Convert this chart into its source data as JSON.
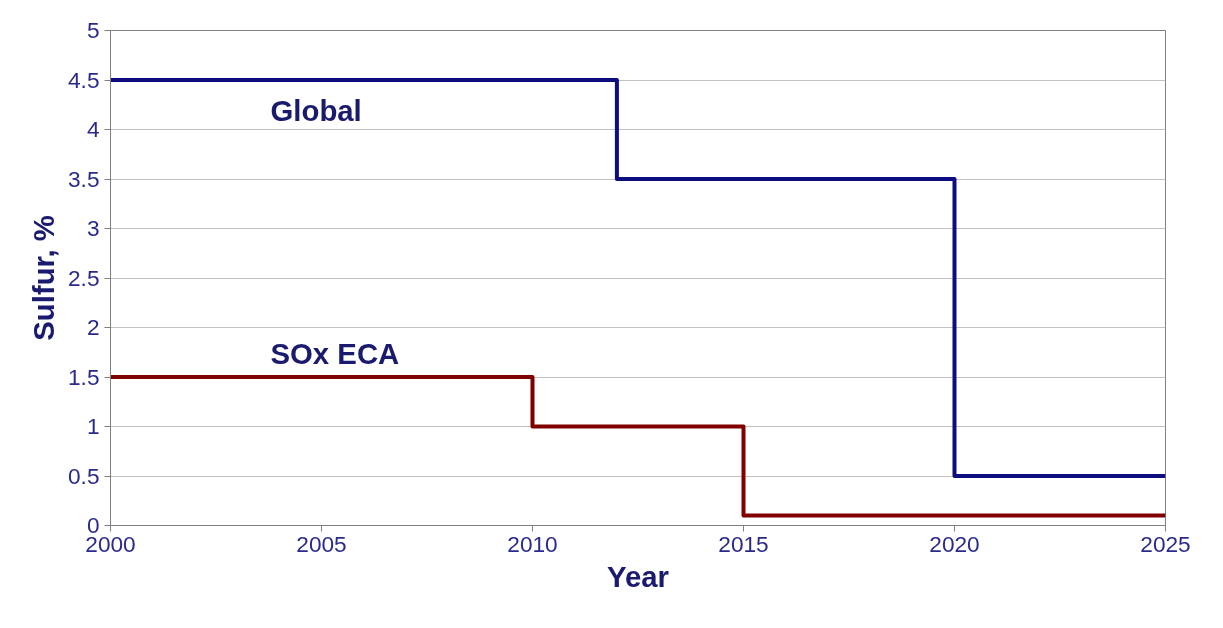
{
  "chart_data": {
    "type": "step",
    "xlabel": "Year",
    "ylabel": "Sulfur, %",
    "xlim": [
      2000,
      2025
    ],
    "xticks": [
      2000,
      2005,
      2010,
      2015,
      2020,
      2025
    ],
    "ylim": [
      0,
      5
    ],
    "yticks": [
      0,
      0.5,
      1,
      1.5,
      2,
      2.5,
      3,
      3.5,
      4,
      4.5,
      5
    ],
    "grid": "y",
    "series": [
      {
        "name": "Global",
        "color": "#0d0d80",
        "x": [
          2000,
          2012,
          2020,
          2025
        ],
        "values": [
          4.5,
          3.5,
          0.5,
          0.5
        ]
      },
      {
        "name": "SOx ECA",
        "color": "#800000",
        "x": [
          2000,
          2010,
          2015,
          2025
        ],
        "values": [
          1.5,
          1,
          0.1,
          0.1
        ]
      }
    ]
  }
}
